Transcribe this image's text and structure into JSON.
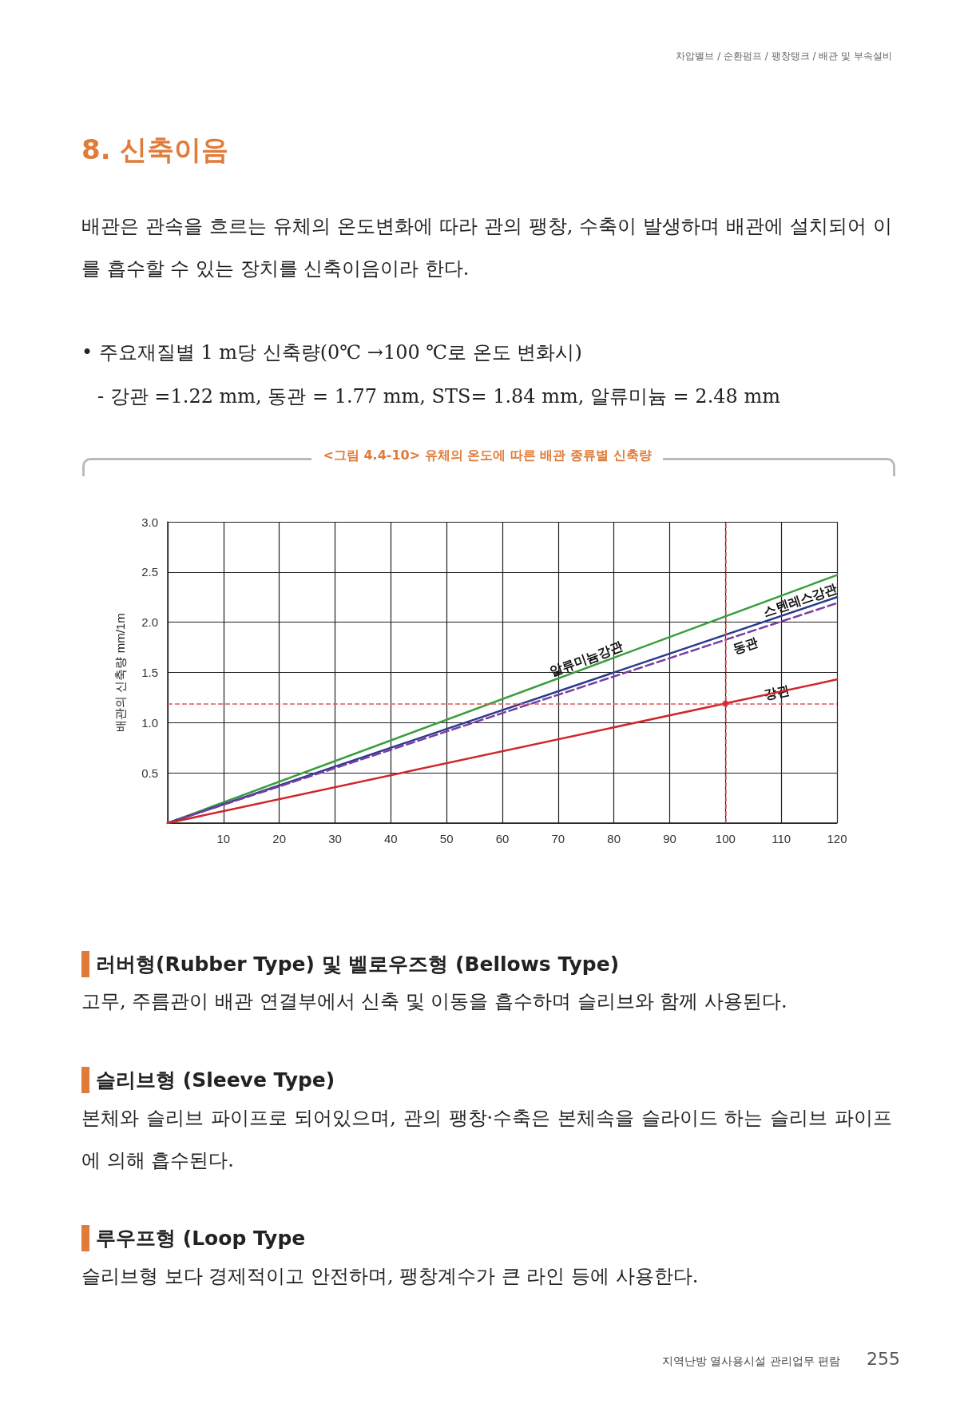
{
  "chart_data": {
    "type": "line",
    "title": "<그림 4.4-10> 유체의 온도에 따른 배관 종류별 신축량",
    "ylabel": "배관의 신축량 mm/1m",
    "annotations": [
      "차압밸브 / 순환펌프 / 팽창탱크 / 배관 및 부속설비",
      "8. 신축이음",
      "배관은 관속을 흐르는 유체의 온도변화에 따라 관의 팽창, 수축이 발생하며 배관에 설치되어 이를 흡수할 수 있는 장치를 신축이음이라 한다.",
      "• 주요재질별 1 m당 신축량(0℃ →100 ℃로 온도 변화시)",
      "- 강관 =1.22 mm, 동관 = 1.77 mm, STS= 1.84 mm, 알류미늄 = 2.48 mm",
      "러버형(Rubber Type) 및 벨로우즈형 (Bellows Type)",
      "고무, 주름관이 배관 연결부에서 신축 및 이동을 흡수하며 슬리브와 함께 사용된다.",
      "슬리브형 (Sleeve Type)",
      "본체와 슬리브 파이프로 되어있으며, 관의 팽창·수축은 본체속을 슬라이드 하는 슬리브 파이프에 의해 흡수된다.",
      "루우프형 (Loop Type",
      "슬리브형 보다 경제적이고 안전하며, 팽창계수가 큰 라인 등에 사용한다.",
      "지역난방 열사용시설 관리업무 편람",
      "255"
    ],
    "series": [
      {
        "name": "알류미늄강관",
        "color": "#3a9e3f",
        "x": [
          0,
          120
        ],
        "values": [
          0,
          2.47
        ]
      },
      {
        "name": "스텐레스강관",
        "color": "#2c3a8c",
        "x": [
          0,
          120
        ],
        "values": [
          0,
          2.25
        ]
      },
      {
        "name": "동관",
        "color": "#7a3ea3",
        "x": [
          0,
          120
        ],
        "values": [
          0,
          2.19
        ],
        "line_style": "dashed"
      },
      {
        "name": "강관",
        "color": "#d0262b",
        "x": [
          0,
          120
        ],
        "values": [
          0,
          1.43
        ]
      },
      {
        "type": "scatter",
        "color": "#d0262b",
        "x": [
          100
        ],
        "values": [
          1.19
        ],
        "marker": "circle"
      }
    ],
    "ref_lines": [
      {
        "axis": "y",
        "value": 1.19,
        "color": "#e05a5a",
        "line_style": "dashed"
      },
      {
        "axis": "x",
        "value": 100,
        "color": "#e05a5a",
        "line_style": "dashed"
      }
    ],
    "xlim": [
      0,
      120
    ],
    "xticks": [
      10,
      20,
      30,
      40,
      50,
      60,
      70,
      80,
      90,
      100,
      110,
      120
    ],
    "ylim": [
      0,
      3
    ],
    "yticks": [
      {
        "value": 0.5,
        "label": "0.5"
      },
      {
        "value": 1,
        "label": "1.0"
      },
      {
        "value": 1.5,
        "label": "1.5"
      },
      {
        "value": 2,
        "label": "2.0"
      },
      {
        "value": 2.5,
        "label": "2.5"
      },
      {
        "value": 3,
        "label": "3.0"
      }
    ],
    "grid": true,
    "legend": false,
    "marker": "none",
    "line_style": "solid"
  }
}
